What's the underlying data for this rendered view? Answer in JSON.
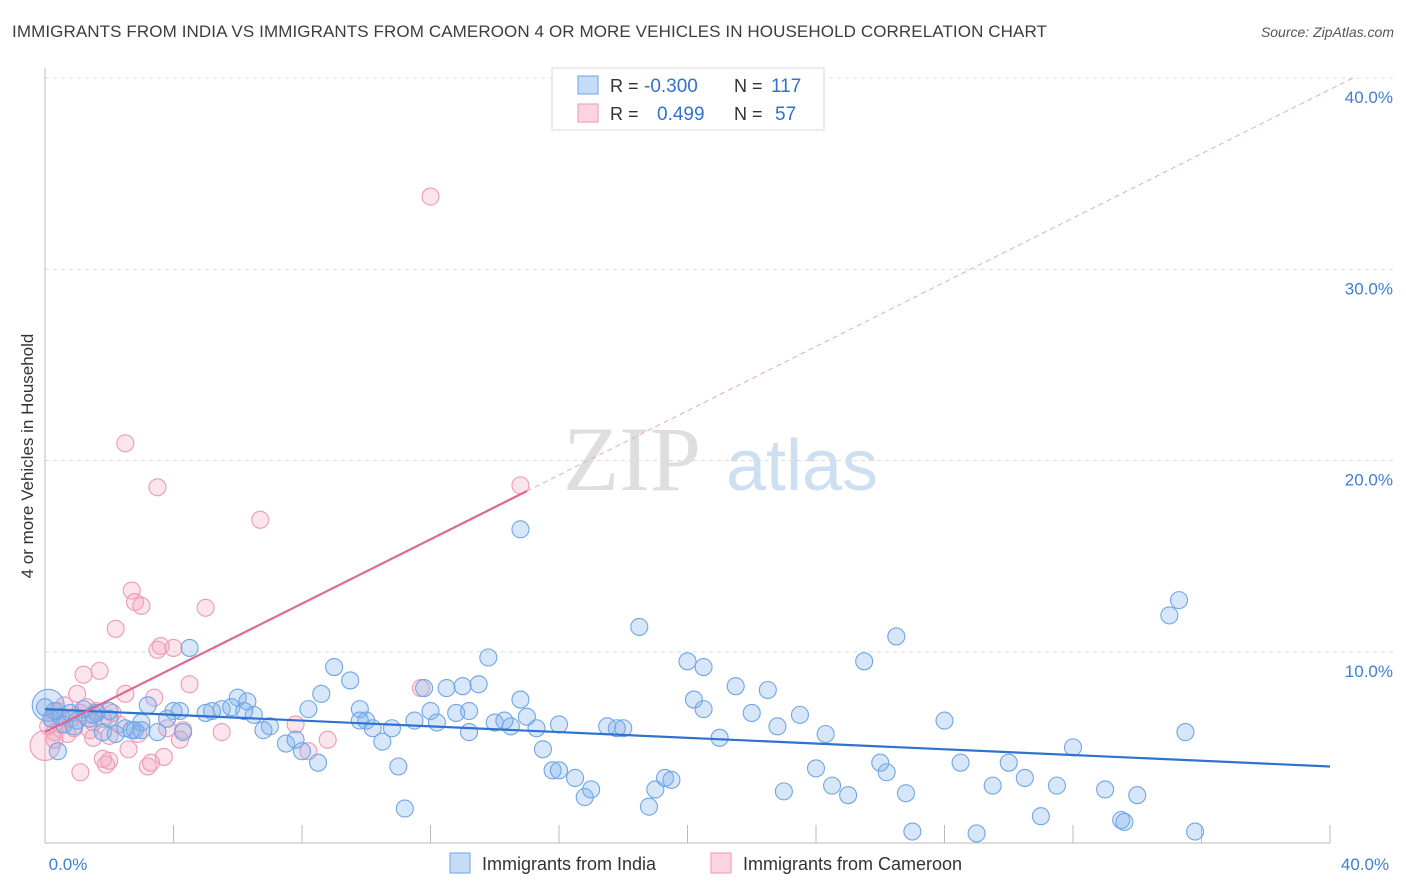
{
  "header": {
    "title": "IMMIGRANTS FROM INDIA VS IMMIGRANTS FROM CAMEROON 4 OR MORE VEHICLES IN HOUSEHOLD CORRELATION CHART",
    "source": "Source: ZipAtlas.com"
  },
  "watermark": {
    "zip": "ZIP",
    "atlas": "atlas"
  },
  "colors": {
    "india": "#7ab0ea",
    "india_line": "#2f72d0",
    "cameroon": "#f2a4bd",
    "cameroon_line": "#e06691",
    "tick_label": "#3f7fd0"
  },
  "legend_top": {
    "rows": [
      {
        "r_label": "R =",
        "r_value": "-0.300",
        "n_label": "N =",
        "n_value": "117"
      },
      {
        "r_label": "R =",
        "r_value": "0.499",
        "n_label": "N =",
        "n_value": "57"
      }
    ]
  },
  "legend_bottom": {
    "india": "Immigrants from India",
    "cameroon": "Immigrants from Cameroon"
  },
  "chart_data": {
    "type": "scatter",
    "title": "IMMIGRANTS FROM INDIA VS IMMIGRANTS FROM CAMEROON 4 OR MORE VEHICLES IN HOUSEHOLD CORRELATION CHART",
    "xlabel": "",
    "ylabel": "4 or more Vehicles in Household",
    "xlim": [
      0,
      40
    ],
    "ylim": [
      0,
      40
    ],
    "x_tick_labels": [
      "0.0%",
      "40.0%"
    ],
    "y_ticks": [
      10,
      20,
      30,
      40
    ],
    "y_tick_labels": [
      "10.0%",
      "20.0%",
      "30.0%",
      "40.0%"
    ],
    "grid": true,
    "legend_position": "bottom",
    "series": [
      {
        "name": "Immigrants from India",
        "color": "#7ab0ea",
        "trend": {
          "x": [
            0,
            40
          ],
          "y": [
            7.0,
            4.0
          ]
        },
        "points": [
          [
            0.1,
            7.2
          ],
          [
            0.2,
            6.5
          ],
          [
            0.3,
            6.9
          ],
          [
            0.5,
            6.6
          ],
          [
            0.6,
            6.2
          ],
          [
            0.8,
            6.8
          ],
          [
            1.0,
            6.4
          ],
          [
            1.2,
            7.0
          ],
          [
            1.4,
            6.5
          ],
          [
            1.6,
            6.8
          ],
          [
            1.8,
            5.8
          ],
          [
            2.0,
            6.9
          ],
          [
            2.2,
            5.7
          ],
          [
            2.5,
            6.0
          ],
          [
            2.8,
            5.9
          ],
          [
            3.0,
            6.3
          ],
          [
            3.2,
            7.2
          ],
          [
            3.5,
            5.8
          ],
          [
            3.8,
            6.5
          ],
          [
            4.0,
            6.9
          ],
          [
            4.3,
            5.8
          ],
          [
            4.5,
            10.2
          ],
          [
            5.0,
            6.8
          ],
          [
            5.5,
            7.0
          ],
          [
            6.0,
            7.6
          ],
          [
            6.3,
            7.4
          ],
          [
            6.5,
            6.7
          ],
          [
            7.0,
            6.1
          ],
          [
            7.5,
            5.2
          ],
          [
            8.0,
            4.8
          ],
          [
            8.5,
            4.2
          ],
          [
            8.6,
            7.8
          ],
          [
            9.0,
            9.2
          ],
          [
            9.5,
            8.5
          ],
          [
            9.8,
            7.0
          ],
          [
            10.0,
            6.4
          ],
          [
            10.5,
            5.3
          ],
          [
            10.8,
            6.0
          ],
          [
            11.0,
            4.0
          ],
          [
            11.2,
            1.8
          ],
          [
            11.5,
            6.4
          ],
          [
            11.8,
            8.1
          ],
          [
            12.0,
            6.9
          ],
          [
            12.5,
            8.1
          ],
          [
            12.8,
            6.8
          ],
          [
            13.0,
            8.2
          ],
          [
            13.2,
            5.8
          ],
          [
            13.5,
            8.3
          ],
          [
            13.8,
            9.7
          ],
          [
            14.0,
            6.3
          ],
          [
            14.3,
            6.4
          ],
          [
            14.5,
            6.1
          ],
          [
            14.8,
            7.5
          ],
          [
            15.0,
            6.6
          ],
          [
            15.3,
            6.0
          ],
          [
            15.5,
            4.9
          ],
          [
            15.8,
            3.8
          ],
          [
            16.0,
            3.8
          ],
          [
            14.8,
            16.4
          ],
          [
            16.5,
            3.4
          ],
          [
            16.8,
            2.4
          ],
          [
            17.0,
            2.8
          ],
          [
            17.5,
            6.1
          ],
          [
            18.0,
            6.0
          ],
          [
            18.5,
            11.3
          ],
          [
            18.8,
            1.9
          ],
          [
            19.0,
            2.8
          ],
          [
            19.3,
            3.4
          ],
          [
            19.5,
            3.3
          ],
          [
            20.0,
            9.5
          ],
          [
            20.2,
            7.5
          ],
          [
            20.5,
            9.2
          ],
          [
            21.0,
            5.5
          ],
          [
            21.5,
            8.2
          ],
          [
            22.0,
            6.8
          ],
          [
            22.5,
            8.0
          ],
          [
            22.8,
            6.1
          ],
          [
            23.0,
            2.7
          ],
          [
            24.0,
            3.9
          ],
          [
            24.3,
            5.7
          ],
          [
            24.5,
            3.0
          ],
          [
            25.0,
            2.5
          ],
          [
            25.5,
            9.5
          ],
          [
            26.0,
            4.2
          ],
          [
            26.5,
            10.8
          ],
          [
            26.2,
            3.7
          ],
          [
            26.8,
            2.6
          ],
          [
            27.0,
            0.6
          ],
          [
            28.0,
            6.4
          ],
          [
            28.5,
            4.2
          ],
          [
            29.0,
            0.5
          ],
          [
            29.5,
            3.0
          ],
          [
            30.0,
            4.2
          ],
          [
            30.5,
            3.4
          ],
          [
            31.0,
            1.4
          ],
          [
            31.5,
            3.0
          ],
          [
            32.0,
            5.0
          ],
          [
            33.0,
            2.8
          ],
          [
            33.5,
            1.2
          ],
          [
            34.0,
            2.5
          ],
          [
            35.0,
            11.9
          ],
          [
            35.5,
            5.8
          ],
          [
            35.8,
            0.6
          ],
          [
            35.3,
            12.7
          ],
          [
            33.6,
            1.1
          ],
          [
            2.0,
            6.5
          ],
          [
            3.0,
            5.9
          ],
          [
            5.2,
            6.9
          ],
          [
            6.8,
            5.9
          ],
          [
            7.8,
            5.4
          ],
          [
            9.8,
            6.4
          ],
          [
            10.2,
            6.0
          ],
          [
            12.2,
            6.3
          ],
          [
            16.0,
            6.2
          ],
          [
            0.4,
            4.8
          ],
          [
            1.5,
            6.7
          ],
          [
            4.2,
            6.9
          ],
          [
            8.2,
            7.0
          ],
          [
            20.5,
            7.0
          ],
          [
            0.9,
            6.1
          ],
          [
            2.7,
            5.9
          ],
          [
            5.8,
            7.1
          ],
          [
            13.2,
            6.9
          ],
          [
            23.5,
            6.7
          ],
          [
            6.2,
            6.9
          ],
          [
            17.8,
            6.0
          ],
          [
            0.0,
            7.1
          ]
        ]
      },
      {
        "name": "Immigrants from Cameroon",
        "color": "#f2a4bd",
        "trend": {
          "x": [
            0,
            15
          ],
          "y": [
            5.8,
            18.4
          ]
        },
        "points": [
          [
            0.0,
            5.1
          ],
          [
            0.1,
            6.1
          ],
          [
            0.2,
            6.5
          ],
          [
            0.3,
            5.8
          ],
          [
            0.4,
            6.9
          ],
          [
            0.5,
            6.2
          ],
          [
            0.6,
            7.2
          ],
          [
            0.7,
            5.7
          ],
          [
            0.8,
            6.5
          ],
          [
            0.9,
            6.0
          ],
          [
            1.0,
            7.8
          ],
          [
            1.1,
            6.8
          ],
          [
            1.2,
            8.8
          ],
          [
            1.3,
            7.1
          ],
          [
            1.4,
            5.9
          ],
          [
            1.5,
            6.3
          ],
          [
            1.6,
            6.9
          ],
          [
            1.7,
            9.0
          ],
          [
            1.8,
            6.5
          ],
          [
            1.9,
            4.1
          ],
          [
            2.0,
            4.3
          ],
          [
            2.1,
            6.8
          ],
          [
            2.2,
            11.2
          ],
          [
            2.3,
            6.2
          ],
          [
            2.5,
            7.8
          ],
          [
            2.6,
            4.9
          ],
          [
            2.7,
            13.2
          ],
          [
            2.8,
            12.6
          ],
          [
            3.0,
            12.4
          ],
          [
            3.2,
            4.0
          ],
          [
            3.3,
            4.2
          ],
          [
            3.4,
            7.6
          ],
          [
            3.5,
            10.1
          ],
          [
            3.6,
            10.3
          ],
          [
            3.7,
            4.5
          ],
          [
            3.8,
            6.0
          ],
          [
            4.0,
            10.2
          ],
          [
            4.2,
            5.4
          ],
          [
            4.5,
            8.3
          ],
          [
            5.0,
            12.3
          ],
          [
            5.5,
            5.8
          ],
          [
            6.7,
            16.9
          ],
          [
            7.8,
            6.2
          ],
          [
            8.2,
            4.8
          ],
          [
            8.8,
            5.4
          ],
          [
            11.7,
            8.1
          ],
          [
            12.0,
            33.8
          ],
          [
            14.8,
            18.7
          ],
          [
            2.5,
            20.9
          ],
          [
            3.5,
            18.6
          ],
          [
            1.1,
            3.7
          ],
          [
            1.8,
            4.4
          ],
          [
            0.3,
            5.4
          ],
          [
            2.9,
            5.7
          ],
          [
            4.3,
            5.9
          ],
          [
            1.5,
            5.5
          ],
          [
            2.0,
            5.6
          ]
        ]
      }
    ]
  },
  "axis": {
    "ylabel": "4 or more Vehicles in Household",
    "x_min_label": "0.0%",
    "x_max_label": "40.0%"
  }
}
